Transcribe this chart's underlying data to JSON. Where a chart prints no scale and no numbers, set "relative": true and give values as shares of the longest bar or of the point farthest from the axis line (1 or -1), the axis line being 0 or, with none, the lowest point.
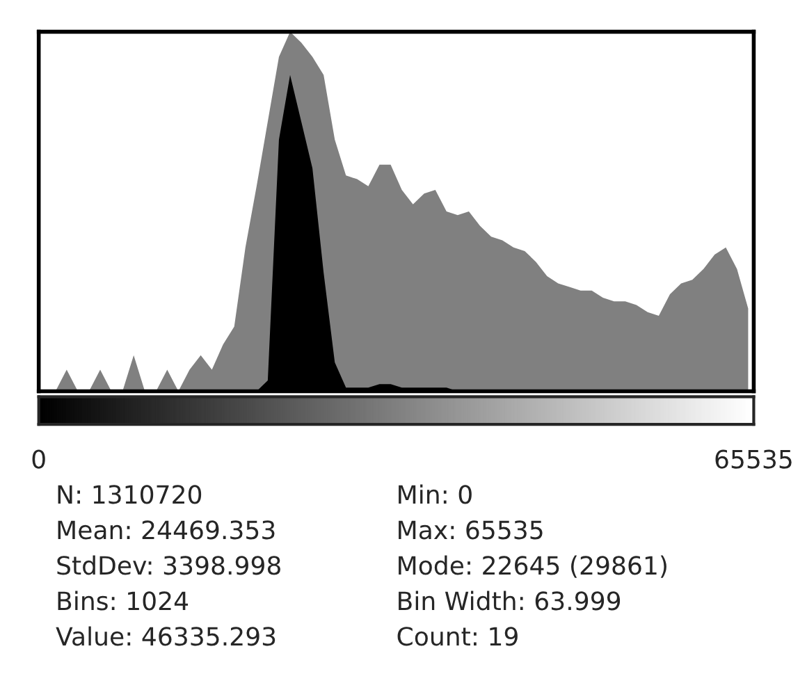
{
  "chart_data": {
    "type": "area",
    "relative": true,
    "legend": false,
    "x": [
      512,
      1536,
      2560,
      3584,
      4608,
      5632,
      6656,
      7680,
      8704,
      9728,
      10752,
      11776,
      12800,
      13824,
      14848,
      15872,
      16896,
      17920,
      18944,
      19968,
      20992,
      22016,
      23040,
      24064,
      25088,
      26112,
      27136,
      28160,
      29184,
      30208,
      31232,
      32256,
      33280,
      34304,
      35328,
      36352,
      37376,
      38400,
      39424,
      40448,
      41472,
      42496,
      43520,
      44544,
      45568,
      46592,
      47616,
      48640,
      49664,
      50688,
      51712,
      52736,
      53760,
      54784,
      55808,
      56832,
      57856,
      58880,
      59904,
      60928,
      61952,
      62976,
      64000,
      65024
    ],
    "xlim": [
      0,
      65535
    ],
    "xticks": [
      0,
      65535
    ],
    "series": [
      {
        "color": "#808080",
        "values": [
          0,
          0,
          0.06,
          0,
          0,
          0.06,
          0,
          0,
          0.1,
          0,
          0,
          0.06,
          0,
          0.06,
          0.1,
          0.06,
          0.13,
          0.18,
          0.4,
          0.57,
          0.75,
          0.93,
          1.0,
          0.97,
          0.93,
          0.88,
          0.7,
          0.6,
          0.59,
          0.57,
          0.63,
          0.63,
          0.56,
          0.52,
          0.55,
          0.56,
          0.5,
          0.49,
          0.5,
          0.46,
          0.43,
          0.42,
          0.4,
          0.39,
          0.36,
          0.32,
          0.3,
          0.29,
          0.28,
          0.28,
          0.26,
          0.25,
          0.25,
          0.24,
          0.22,
          0.21,
          0.27,
          0.3,
          0.31,
          0.34,
          0.38,
          0.4,
          0.34,
          0.23
        ]
      },
      {
        "color": "#000000",
        "values": [
          0,
          0,
          0,
          0,
          0,
          0,
          0,
          0,
          0,
          0,
          0,
          0,
          0,
          0,
          0,
          0,
          0,
          0,
          0,
          0,
          0.03,
          0.7,
          0.88,
          0.75,
          0.62,
          0.33,
          0.08,
          0.01,
          0.01,
          0.01,
          0.02,
          0.02,
          0.01,
          0.01,
          0.01,
          0.01,
          0.01,
          0,
          0,
          0,
          0,
          0,
          0,
          0,
          0,
          0,
          0,
          0,
          0,
          0,
          0,
          0,
          0,
          0,
          0,
          0,
          0,
          0,
          0,
          0,
          0,
          0,
          0,
          0
        ]
      }
    ],
    "annotations": [
      "N: 1310720",
      "Min: 0",
      "Mean: 24469.353",
      "Max: 65535",
      "StdDev: 3398.998",
      "Mode: 22645 (29861)",
      "Bins: 1024",
      "Bin Width: 63.999",
      "Value: 46335.293",
      "Count: 19"
    ]
  }
}
